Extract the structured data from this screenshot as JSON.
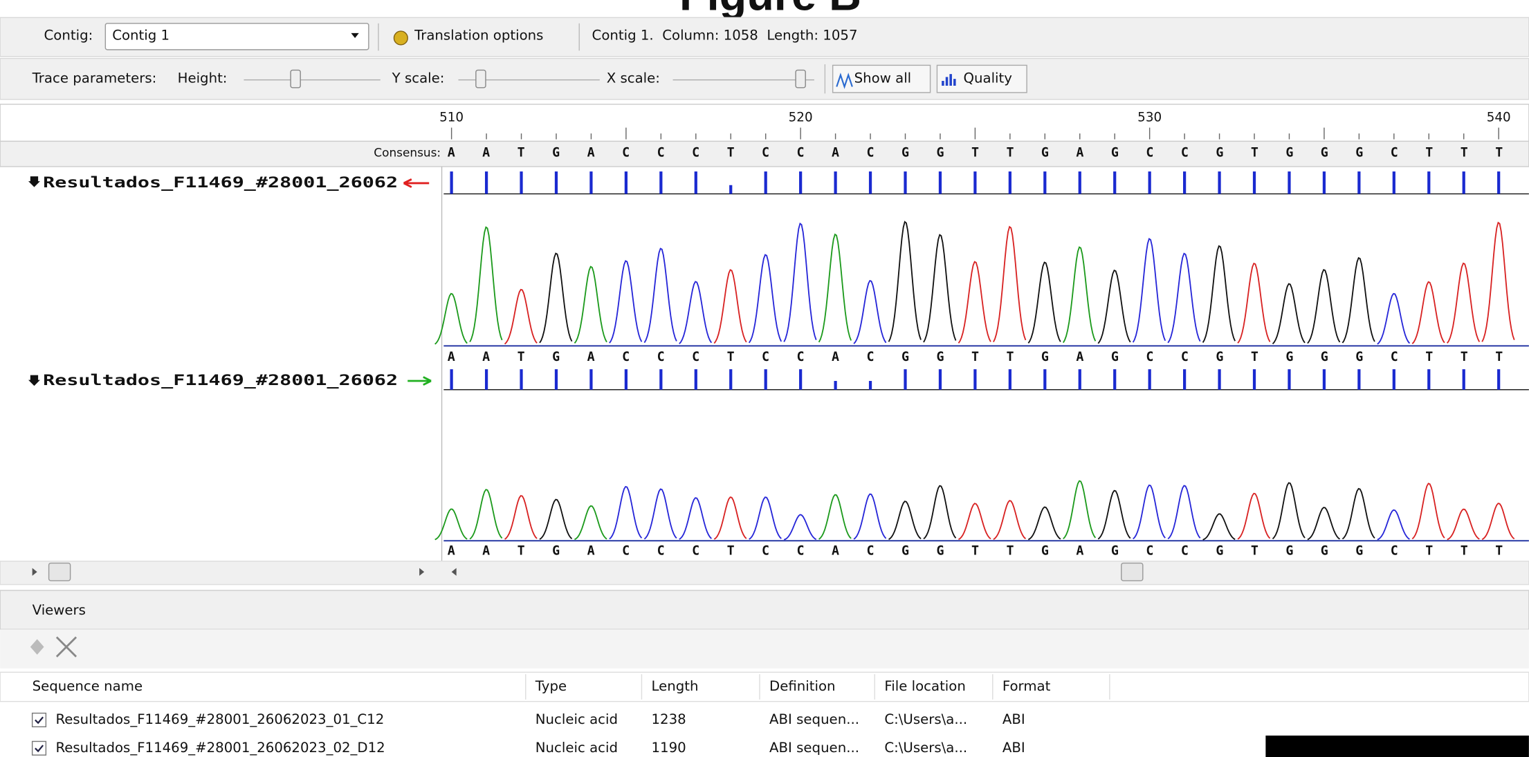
{
  "title": "Figure B",
  "toolbar": {
    "contig_label": "Contig:",
    "contig_value": "Contig 1",
    "translation_options": "Translation options",
    "status": "Contig 1.  Column: 1058  Length: 1057"
  },
  "trace_parameters": {
    "label": "Trace parameters:",
    "height": "Height:",
    "y_scale": "Y scale:",
    "x_scale": "X scale:",
    "show_all": "Show all",
    "quality": "Quality"
  },
  "alignment": {
    "ruler": [
      510,
      520,
      530,
      540
    ],
    "consensus_label": "Consensus:",
    "consensus": "AATGACCCTCCACGGTTGAGCCGTGGGCTTT",
    "reads": [
      {
        "name": "Resultados_F11469_#28001_26062",
        "bases": "AATGACCCTCCACGGTTGAGCCGTGGGCTTT"
      },
      {
        "name": "Resultados_F11469_#28001_26062",
        "bases": "AATGACCCTCCACGGTTGAGCCGTGGGCTTT"
      }
    ]
  },
  "viewers": {
    "title": "Viewers",
    "columns": [
      "Sequence name",
      "Type",
      "Length",
      "Definition",
      "File location",
      "Format"
    ],
    "rows": [
      [
        "Resultados_F11469_#28001_26062023_01_C12",
        "Nucleic acid",
        "1238",
        "ABI sequen...",
        "C:\\Users\\a...",
        "ABI"
      ],
      [
        "Resultados_F11469_#28001_26062023_02_D12",
        "Nucleic acid",
        "1190",
        "ABI sequen...",
        "C:\\Users\\a...",
        "ABI"
      ]
    ]
  }
}
